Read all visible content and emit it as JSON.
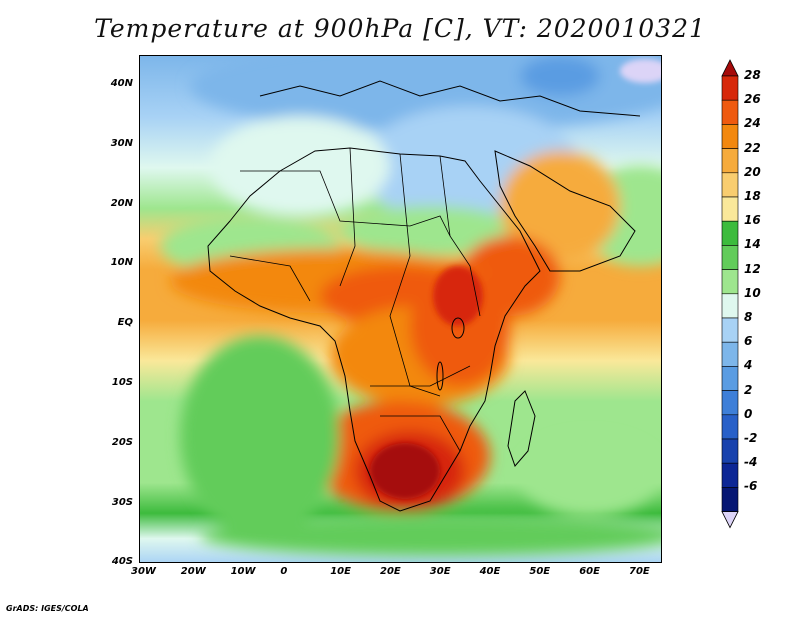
{
  "title": "Temperature at 900hPa [C], VT: 2020010321",
  "credit": "GrADS: IGES/COLA",
  "map": {
    "lat_range": [
      -40,
      45
    ],
    "lon_range": [
      -30,
      75
    ],
    "lat_ticks": [
      "40N",
      "30N",
      "20N",
      "10N",
      "EQ",
      "10S",
      "20S",
      "30S",
      "40S"
    ],
    "lon_ticks": [
      "30W",
      "20W",
      "10W",
      "0",
      "10E",
      "20E",
      "30E",
      "40E",
      "50E",
      "60E",
      "70E"
    ]
  },
  "colorbar": {
    "labels": [
      "28",
      "26",
      "24",
      "22",
      "20",
      "18",
      "16",
      "14",
      "12",
      "10",
      "8",
      "6",
      "4",
      "2",
      "0",
      "-2",
      "-4",
      "-6"
    ],
    "colors": [
      "#a50a0a",
      "#d7280b",
      "#ef5a10",
      "#f3880f",
      "#f6ab3c",
      "#f9cd6f",
      "#fae89a",
      "#3dbb3d",
      "#62cc5a",
      "#9ee68e",
      "#dff8ef",
      "#a8d2f5",
      "#7db6ea",
      "#5a9ce2",
      "#3e7fd8",
      "#2860c8",
      "#1842ad",
      "#0c2695",
      "#061773",
      "#dcd4f7"
    ]
  }
}
